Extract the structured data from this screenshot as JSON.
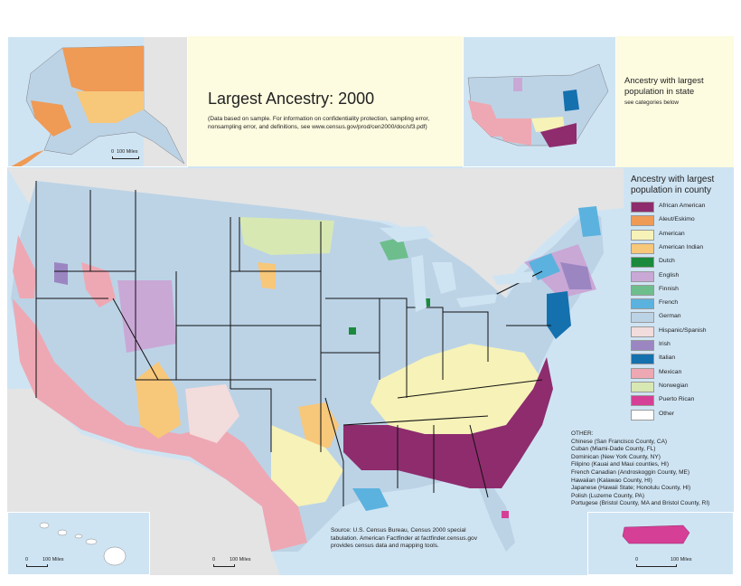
{
  "title": "Largest Ancestry: 2000",
  "note": "(Data based on sample. For information on confidentiality protection, sampling error, nonsampling error, and definitions, see www.census.gov/prod/cen2000/doc/sf3.pdf)",
  "state_inset": {
    "caption": "Ancestry with largest population in state",
    "subcaption": "see categories below"
  },
  "legend": {
    "title": "Ancestry with largest population in county",
    "items": [
      {
        "label": "African American",
        "color": "#8e2c6e"
      },
      {
        "label": "Aleut/Eskimo",
        "color": "#ef9a55"
      },
      {
        "label": "American",
        "color": "#f6f2b8"
      },
      {
        "label": "American Indian",
        "color": "#f7c77a"
      },
      {
        "label": "Dutch",
        "color": "#1b8a3c"
      },
      {
        "label": "English",
        "color": "#c9a8d6"
      },
      {
        "label": "Finnish",
        "color": "#6dbe8c"
      },
      {
        "label": "French",
        "color": "#5bb2de"
      },
      {
        "label": "German",
        "color": "#bcd3e6"
      },
      {
        "label": "Hispanic/Spanish",
        "color": "#f3dcdc"
      },
      {
        "label": "Irish",
        "color": "#9b86c2"
      },
      {
        "label": "Italian",
        "color": "#1570ae"
      },
      {
        "label": "Mexican",
        "color": "#eea8b3"
      },
      {
        "label": "Norwegian",
        "color": "#d8e8b3"
      },
      {
        "label": "Puerto Rican",
        "color": "#d63f96"
      },
      {
        "label": "Other",
        "color": "#ffffff"
      }
    ]
  },
  "other": {
    "heading": "OTHER:",
    "items": [
      "Chinese (San Francisco County, CA)",
      "Cuban (Miami-Dade County, FL)",
      "Dominican (New York County, NY)",
      "Filipino (Kauai and Maui counties, HI)",
      "French Canadian (Androskoggin County, ME)",
      "Hawaiian (Kalawao County, HI)",
      "Japanese (Hawaii State; Honolulu County, HI)",
      "Polish (Luzerne County, PA)",
      "Portugese (Bristol County, MA and Bristol County, RI)"
    ]
  },
  "source": "Source: U.S. Census Bureau, Census 2000 special tabulation. American Factfinder at factfinder.census.gov provides census data and mapping tools.",
  "scales": {
    "alaska": {
      "zero": "0",
      "label": "100 Miles"
    },
    "hawaii": {
      "zero": "0",
      "label": "100 Miles"
    },
    "conus": {
      "zero": "0",
      "label": "100 Miles"
    },
    "puerto_rico": {
      "zero": "0",
      "label": "100 Miles"
    }
  }
}
